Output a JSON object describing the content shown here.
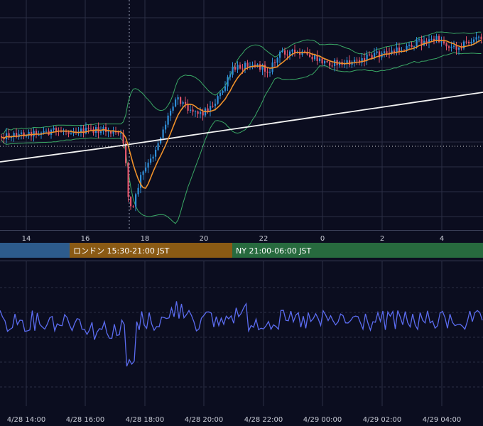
{
  "theme": {
    "background": "#0b0d1f",
    "grid": "#2b2f45",
    "candle_up": "#2f8fd8",
    "candle_down": "#e0546a",
    "ma_short": "#f0912a",
    "ma_long": "#f2f2f2",
    "bollinger": "#3aa865",
    "oscillator": "#5b6cf0",
    "dotted_level": "#d8d8d8"
  },
  "price_axis": {
    "hour_ticks": [
      "14",
      "16",
      "18",
      "20",
      "22",
      "0",
      "2",
      "4"
    ]
  },
  "sessions": [
    {
      "label": "",
      "color": "#2d5b8c"
    },
    {
      "label": "ロンドン 15:30-21:00 JST",
      "color": "#8a5a14"
    },
    {
      "label": "NY 21:00-06:00 JST",
      "color": "#276a3e"
    }
  ],
  "osc_axis": {
    "time_ticks": [
      "4/28 14:00",
      "4/28 16:00",
      "4/28 18:00",
      "4/28 20:00",
      "4/28 22:00",
      "4/29 00:00",
      "4/29 02:00",
      "4/29 04:00"
    ]
  },
  "chart_data": {
    "type": "candlestick",
    "x_unit": "hours (JST)",
    "x_range": [
      13.1,
      4.95
    ],
    "series": [
      {
        "kind": "candles",
        "interval_minutes": 5
      },
      {
        "kind": "moving_average_short",
        "color": "#f0912a"
      },
      {
        "kind": "moving_average_long",
        "color": "#f2f2f2"
      },
      {
        "kind": "bollinger_bands",
        "color": "#3aa865"
      },
      {
        "kind": "oscillator",
        "color": "#5b6cf0"
      }
    ],
    "legend": "none",
    "grid": true
  }
}
